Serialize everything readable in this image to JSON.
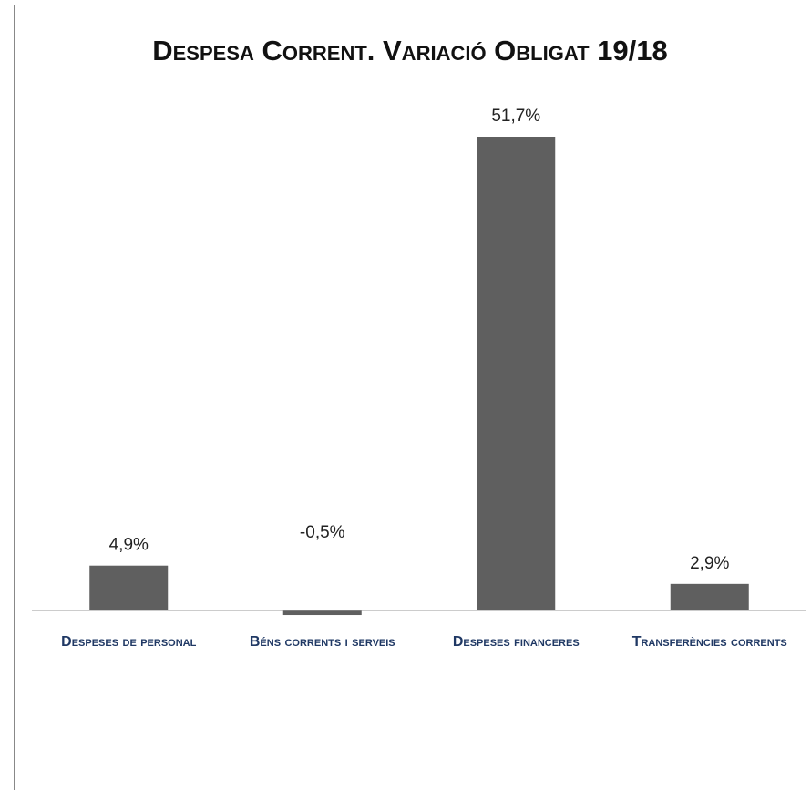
{
  "chart_data": {
    "type": "bar",
    "title": "Despesa Corrent. Variació Obligat 19/18",
    "categories": [
      "Despeses de personal",
      "Béns corrents i serveis",
      "Despeses financeres",
      "Transferències corrents"
    ],
    "values": [
      4.9,
      -0.5,
      51.7,
      2.9
    ],
    "value_labels": [
      "4,9%",
      "-0,5%",
      "51,7%",
      "2,9%"
    ],
    "color": "#5f5f5f"
  }
}
